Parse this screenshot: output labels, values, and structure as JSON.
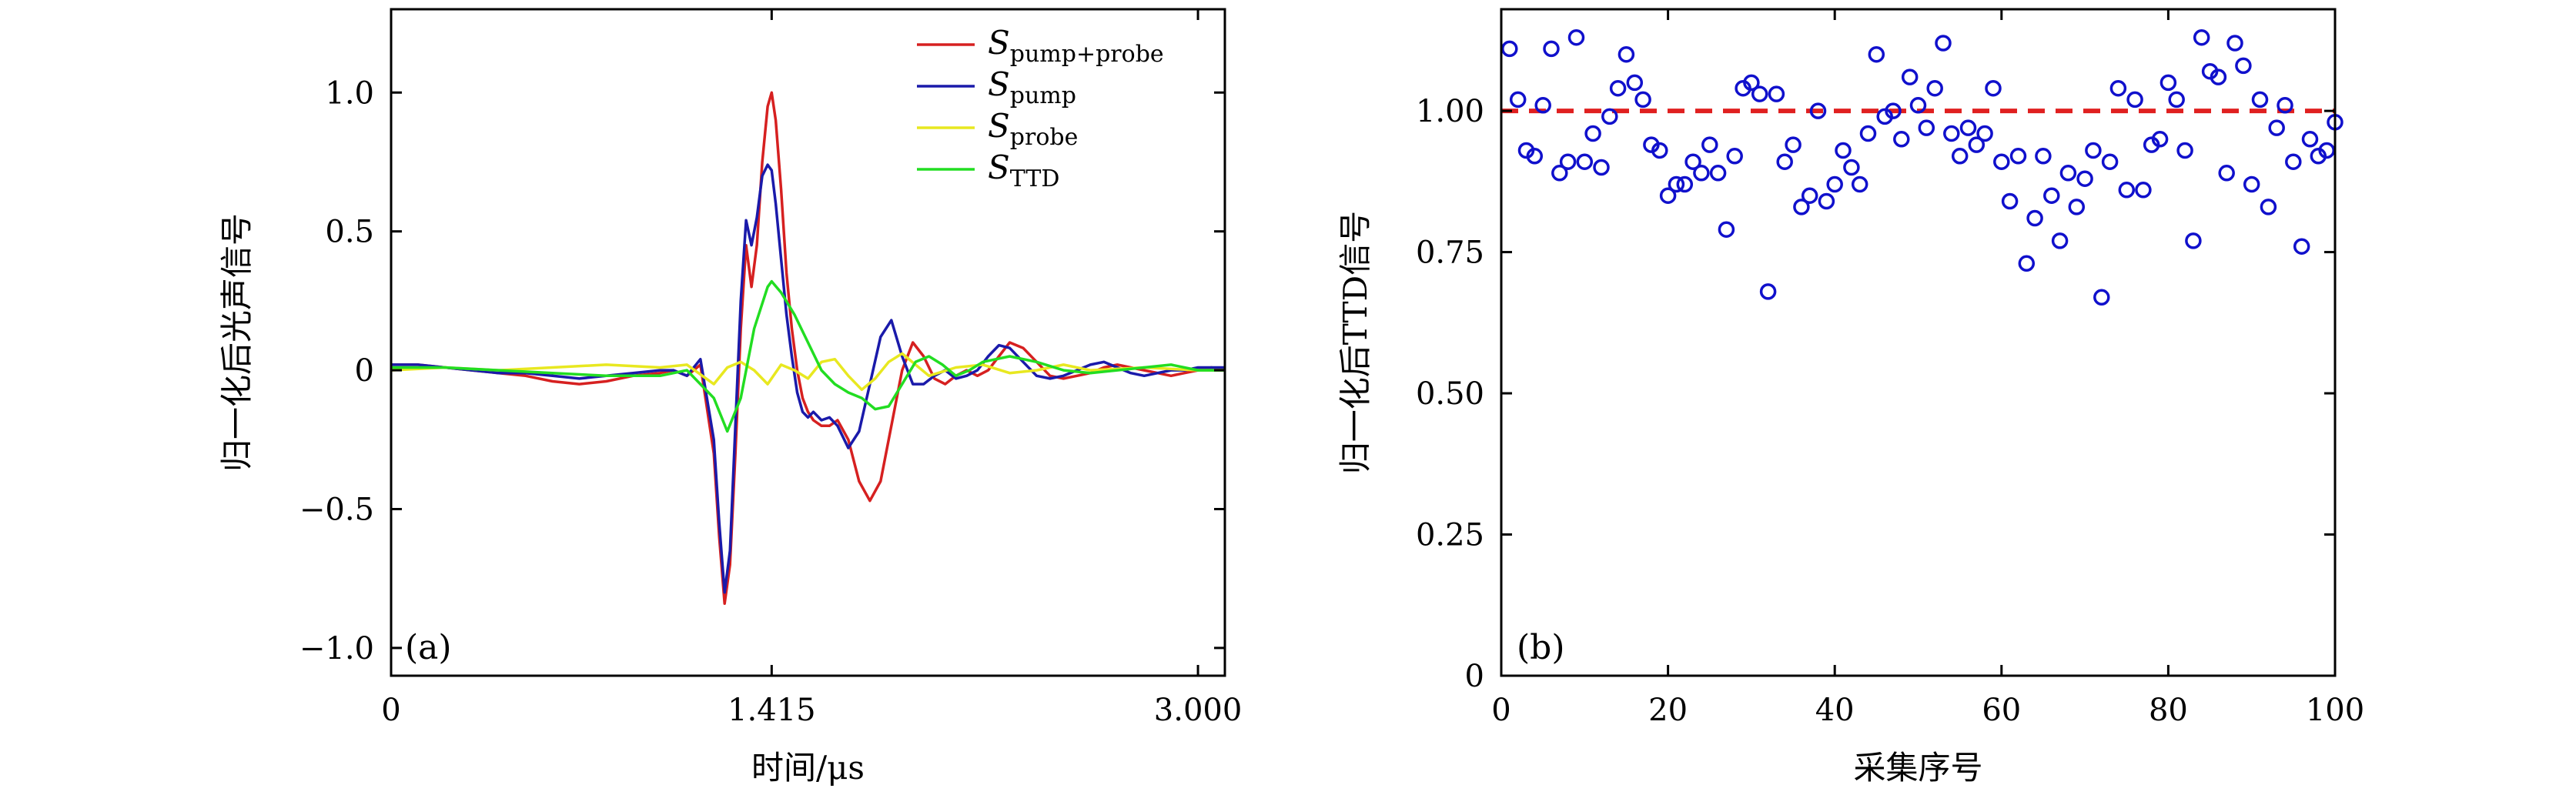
{
  "chart_data": [
    {
      "type": "line",
      "panel_label": "(a)",
      "xlabel": "时间/μs",
      "ylabel": "归一化后光声信号",
      "xlim": [
        0,
        3.1
      ],
      "ylim": [
        -1.1,
        1.3
      ],
      "x_ticks": [
        {
          "value": 0,
          "label": "0"
        },
        {
          "value": 1.415,
          "label": "1.415"
        },
        {
          "value": 3.0,
          "label": "3.000"
        }
      ],
      "y_ticks": [
        {
          "value": -1.0,
          "label": "−1.0"
        },
        {
          "value": -0.5,
          "label": "−0.5"
        },
        {
          "value": 0,
          "label": "0"
        },
        {
          "value": 0.5,
          "label": "0.5"
        },
        {
          "value": 1.0,
          "label": "1.0"
        }
      ],
      "legend_position": "top-right",
      "series": [
        {
          "name_main": "S",
          "name_sub": "pump+probe",
          "color": "#d62020",
          "x": [
            0,
            0.1,
            0.2,
            0.3,
            0.4,
            0.5,
            0.6,
            0.7,
            0.8,
            0.9,
            1.0,
            1.05,
            1.1,
            1.15,
            1.2,
            1.22,
            1.24,
            1.26,
            1.28,
            1.3,
            1.32,
            1.34,
            1.36,
            1.38,
            1.4,
            1.415,
            1.43,
            1.45,
            1.47,
            1.49,
            1.51,
            1.53,
            1.55,
            1.57,
            1.6,
            1.63,
            1.66,
            1.7,
            1.74,
            1.78,
            1.82,
            1.86,
            1.9,
            1.94,
            1.98,
            2.02,
            2.06,
            2.1,
            2.14,
            2.18,
            2.22,
            2.26,
            2.3,
            2.35,
            2.4,
            2.45,
            2.5,
            2.55,
            2.6,
            2.65,
            2.7,
            2.75,
            2.8,
            2.85,
            2.9,
            2.95,
            3.0,
            3.05,
            3.1
          ],
          "y": [
            0.02,
            0.02,
            0.01,
            0.0,
            -0.01,
            -0.02,
            -0.04,
            -0.05,
            -0.04,
            -0.02,
            -0.01,
            0.0,
            -0.02,
            0.02,
            -0.3,
            -0.6,
            -0.84,
            -0.7,
            -0.3,
            0.15,
            0.45,
            0.3,
            0.45,
            0.75,
            0.95,
            1.0,
            0.9,
            0.65,
            0.35,
            0.15,
            0.0,
            -0.1,
            -0.15,
            -0.18,
            -0.2,
            -0.2,
            -0.18,
            -0.25,
            -0.4,
            -0.47,
            -0.4,
            -0.2,
            0.0,
            0.1,
            0.05,
            -0.03,
            -0.05,
            -0.02,
            0.0,
            -0.02,
            0.0,
            0.05,
            0.1,
            0.08,
            0.03,
            -0.02,
            -0.03,
            -0.02,
            -0.01,
            0.01,
            0.02,
            0.01,
            0.0,
            -0.01,
            -0.02,
            -0.01,
            0.0,
            0.01,
            0.0
          ]
        },
        {
          "name_main": "S",
          "name_sub": "pump",
          "color": "#1a1aaa",
          "x": [
            0,
            0.1,
            0.2,
            0.3,
            0.4,
            0.5,
            0.6,
            0.7,
            0.8,
            0.9,
            1.0,
            1.05,
            1.1,
            1.15,
            1.2,
            1.22,
            1.24,
            1.26,
            1.28,
            1.3,
            1.32,
            1.34,
            1.36,
            1.38,
            1.4,
            1.415,
            1.43,
            1.45,
            1.47,
            1.49,
            1.51,
            1.53,
            1.55,
            1.57,
            1.6,
            1.63,
            1.66,
            1.7,
            1.74,
            1.78,
            1.82,
            1.86,
            1.9,
            1.94,
            1.98,
            2.02,
            2.06,
            2.1,
            2.14,
            2.18,
            2.22,
            2.26,
            2.3,
            2.35,
            2.4,
            2.45,
            2.5,
            2.55,
            2.6,
            2.65,
            2.7,
            2.75,
            2.8,
            2.85,
            2.9,
            2.95,
            3.0,
            3.05,
            3.1
          ],
          "y": [
            0.02,
            0.02,
            0.01,
            0.0,
            -0.01,
            -0.01,
            -0.02,
            -0.03,
            -0.02,
            -0.01,
            0.0,
            0.0,
            -0.02,
            0.04,
            -0.25,
            -0.55,
            -0.8,
            -0.65,
            -0.2,
            0.25,
            0.54,
            0.45,
            0.55,
            0.7,
            0.74,
            0.72,
            0.6,
            0.4,
            0.2,
            0.05,
            -0.08,
            -0.15,
            -0.17,
            -0.15,
            -0.18,
            -0.17,
            -0.2,
            -0.28,
            -0.22,
            -0.05,
            0.12,
            0.18,
            0.05,
            -0.05,
            -0.05,
            -0.02,
            0.0,
            -0.03,
            -0.02,
            0.0,
            0.05,
            0.09,
            0.08,
            0.03,
            -0.02,
            -0.03,
            -0.02,
            0.0,
            0.02,
            0.03,
            0.01,
            -0.01,
            -0.02,
            -0.01,
            0.0,
            0.0,
            0.01,
            0.01,
            0.01
          ]
        },
        {
          "name_main": "S",
          "name_sub": "probe",
          "color": "#e8e820",
          "x": [
            0,
            0.2,
            0.4,
            0.6,
            0.8,
            1.0,
            1.1,
            1.2,
            1.25,
            1.3,
            1.35,
            1.4,
            1.45,
            1.5,
            1.55,
            1.6,
            1.65,
            1.7,
            1.75,
            1.8,
            1.85,
            1.9,
            1.95,
            2.0,
            2.1,
            2.2,
            2.3,
            2.4,
            2.5,
            2.6,
            2.8,
            3.0,
            3.1
          ],
          "y": [
            0.0,
            0.01,
            0.0,
            0.01,
            0.02,
            0.01,
            0.02,
            -0.05,
            0.01,
            0.03,
            0.0,
            -0.05,
            0.02,
            0.0,
            -0.03,
            0.03,
            0.04,
            -0.02,
            -0.07,
            -0.03,
            0.03,
            0.06,
            0.02,
            -0.02,
            0.01,
            0.02,
            -0.01,
            0.0,
            0.02,
            0.0,
            0.01,
            0.0,
            0.0
          ]
        },
        {
          "name_main": "S",
          "name_sub": "TTD",
          "color": "#22dd22",
          "x": [
            0,
            0.2,
            0.4,
            0.6,
            0.8,
            1.0,
            1.1,
            1.2,
            1.25,
            1.3,
            1.35,
            1.4,
            1.415,
            1.45,
            1.5,
            1.55,
            1.6,
            1.65,
            1.7,
            1.75,
            1.8,
            1.85,
            1.9,
            1.95,
            2.0,
            2.05,
            2.1,
            2.15,
            2.2,
            2.3,
            2.4,
            2.5,
            2.6,
            2.7,
            2.8,
            2.9,
            3.0,
            3.1
          ],
          "y": [
            0.01,
            0.01,
            0.0,
            -0.01,
            -0.02,
            -0.02,
            0.0,
            -0.1,
            -0.22,
            -0.1,
            0.15,
            0.3,
            0.32,
            0.28,
            0.2,
            0.1,
            0.0,
            -0.05,
            -0.08,
            -0.1,
            -0.14,
            -0.13,
            -0.05,
            0.03,
            0.05,
            0.02,
            -0.02,
            0.0,
            0.03,
            0.05,
            0.03,
            0.0,
            -0.01,
            0.0,
            0.01,
            0.02,
            0.0,
            0.0
          ]
        }
      ]
    },
    {
      "type": "scatter",
      "panel_label": "(b)",
      "xlabel": "采集序号",
      "ylabel": "归一化后TTD信号",
      "xlim": [
        0,
        100
      ],
      "ylim": [
        0,
        1.18
      ],
      "x_ticks": [
        {
          "value": 0,
          "label": "0"
        },
        {
          "value": 20,
          "label": "20"
        },
        {
          "value": 40,
          "label": "40"
        },
        {
          "value": 60,
          "label": "60"
        },
        {
          "value": 80,
          "label": "80"
        },
        {
          "value": 100,
          "label": "100"
        }
      ],
      "y_ticks": [
        {
          "value": 0,
          "label": "0"
        },
        {
          "value": 0.25,
          "label": "0.25"
        },
        {
          "value": 0.5,
          "label": "0.50"
        },
        {
          "value": 0.75,
          "label": "0.75"
        },
        {
          "value": 1.0,
          "label": "1.00"
        }
      ],
      "reference_line": {
        "y": 1.0,
        "color": "#e02020",
        "style": "dashed"
      },
      "marker_color": "#1010cc",
      "points": {
        "x": [
          1,
          2,
          3,
          4,
          5,
          6,
          7,
          8,
          9,
          10,
          11,
          12,
          13,
          14,
          15,
          16,
          17,
          18,
          19,
          20,
          21,
          22,
          23,
          24,
          25,
          26,
          27,
          28,
          29,
          30,
          31,
          32,
          33,
          34,
          35,
          36,
          37,
          38,
          39,
          40,
          41,
          42,
          43,
          44,
          45,
          46,
          47,
          48,
          49,
          50,
          51,
          52,
          53,
          54,
          55,
          56,
          57,
          58,
          59,
          60,
          61,
          62,
          63,
          64,
          65,
          66,
          67,
          68,
          69,
          70,
          71,
          72,
          73,
          74,
          75,
          76,
          77,
          78,
          79,
          80,
          81,
          82,
          83,
          84,
          85,
          86,
          87,
          88,
          89,
          90,
          91,
          92,
          93,
          94,
          95,
          96,
          97,
          98,
          99,
          100
        ],
        "y": [
          1.11,
          1.02,
          0.93,
          0.92,
          1.01,
          1.11,
          0.89,
          0.91,
          1.13,
          0.91,
          0.96,
          0.9,
          0.99,
          1.04,
          1.1,
          1.05,
          1.02,
          0.94,
          0.93,
          0.85,
          0.87,
          0.87,
          0.91,
          0.89,
          0.94,
          0.89,
          0.79,
          0.92,
          1.04,
          1.05,
          1.03,
          0.68,
          1.03,
          0.91,
          0.94,
          0.83,
          0.85,
          1.0,
          0.84,
          0.87,
          0.93,
          0.9,
          0.87,
          0.96,
          1.1,
          0.99,
          1.0,
          0.95,
          1.06,
          1.01,
          0.97,
          1.04,
          1.12,
          0.96,
          0.92,
          0.97,
          0.94,
          0.96,
          1.04,
          0.91,
          0.84,
          0.92,
          0.73,
          0.81,
          0.92,
          0.85,
          0.77,
          0.89,
          0.83,
          0.88,
          0.93,
          0.67,
          0.91,
          1.04,
          0.86,
          1.02,
          0.86,
          0.94,
          0.95,
          1.05,
          1.02,
          0.93,
          0.77,
          1.13,
          1.07,
          1.06,
          0.89,
          1.12,
          1.08,
          0.87,
          1.02,
          0.83,
          0.97,
          1.01,
          0.91,
          0.76,
          0.95,
          0.92,
          0.93,
          0.98
        ]
      }
    }
  ]
}
